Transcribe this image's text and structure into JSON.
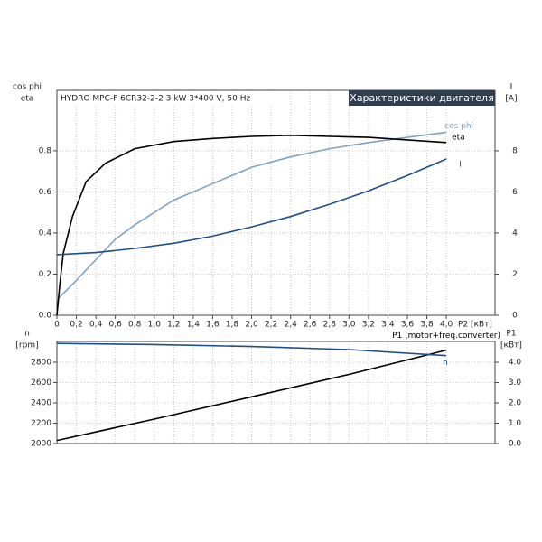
{
  "chart_data": [
    {
      "type": "line",
      "title": "HYDRO MPC-F 6CR32-2-2  3 kW  3*400 V, 50 Hz",
      "panel_label": "Характеристики двигателя",
      "y_label": [
        "cos phi",
        "eta"
      ],
      "y2_label": [
        "I",
        "[A]"
      ],
      "x_label": "P2 [кВт]",
      "xlim": [
        0,
        4.5
      ],
      "xticks": [
        0,
        {
          "value": 0.2,
          "label": "0,2"
        },
        {
          "value": 0.4,
          "label": "0,4"
        },
        {
          "value": 0.6,
          "label": "0,6"
        },
        {
          "value": 0.8,
          "label": "0,8"
        },
        {
          "value": 1.0,
          "label": "1,0"
        },
        {
          "value": 1.2,
          "label": "1,2"
        },
        {
          "value": 1.4,
          "label": "1,4"
        },
        {
          "value": 1.6,
          "label": "1,6"
        },
        {
          "value": 1.8,
          "label": "1,8"
        },
        {
          "value": 2.0,
          "label": "2,0"
        },
        {
          "value": 2.2,
          "label": "2,2"
        },
        {
          "value": 2.4,
          "label": "2,4"
        },
        {
          "value": 2.6,
          "label": "2,6"
        },
        {
          "value": 2.8,
          "label": "2,8"
        },
        {
          "value": 3.0,
          "label": "3,0"
        },
        {
          "value": 3.2,
          "label": "3,2"
        },
        {
          "value": 3.4,
          "label": "3,4"
        },
        {
          "value": 3.6,
          "label": "3,6"
        },
        {
          "value": 3.8,
          "label": "3,8"
        },
        {
          "value": 4.0,
          "label": "4,0"
        }
      ],
      "ylim": [
        0,
        1.094
      ],
      "yticks": [
        {
          "value": 0,
          "label": "0.0"
        },
        0.2,
        0.4,
        0.6,
        0.8
      ],
      "y2lim": [
        0,
        10.94
      ],
      "y2ticks": [
        0,
        2,
        4,
        6,
        8
      ],
      "grid": true,
      "series": [
        {
          "name": "cos phi",
          "color": "#7ea3c4",
          "x": [
            0,
            0.2,
            0.4,
            0.6,
            0.8,
            1.0,
            1.2,
            1.6,
            2.0,
            2.4,
            2.8,
            3.2,
            3.6,
            4.0
          ],
          "values": [
            0.075,
            0.17,
            0.27,
            0.37,
            0.44,
            0.5,
            0.56,
            0.64,
            0.72,
            0.77,
            0.81,
            0.84,
            0.865,
            0.89
          ]
        },
        {
          "name": "eta",
          "color": "#000000",
          "x": [
            0,
            0.03,
            0.065,
            0.16,
            0.3,
            0.5,
            0.8,
            1.2,
            1.6,
            2.0,
            2.4,
            2.8,
            3.2,
            3.6,
            4.0
          ],
          "values": [
            0,
            0.15,
            0.3,
            0.48,
            0.65,
            0.74,
            0.81,
            0.845,
            0.86,
            0.87,
            0.875,
            0.87,
            0.865,
            0.853,
            0.84
          ]
        },
        {
          "name": "I",
          "color": "#1f4e8c",
          "axis": "y2",
          "x": [
            0,
            0.4,
            0.8,
            1.2,
            1.6,
            2.0,
            2.4,
            2.8,
            3.2,
            3.6,
            4.0
          ],
          "values": [
            2.95,
            3.05,
            3.25,
            3.5,
            3.85,
            4.3,
            4.8,
            5.4,
            6.05,
            6.8,
            7.6
          ]
        }
      ]
    },
    {
      "type": "line",
      "y_label": [
        "n",
        "[rpm]"
      ],
      "y2_label": [
        "P1",
        "[кВт]"
      ],
      "xlim": [
        0,
        4.5
      ],
      "ylim": [
        2000,
        3005
      ],
      "yticks": [
        2000,
        2200,
        2400,
        2600,
        2800
      ],
      "y2lim": [
        0,
        5.025
      ],
      "y2ticks": [
        {
          "value": 0,
          "label": "0.0"
        },
        {
          "value": 1,
          "label": "1.0"
        },
        {
          "value": 2,
          "label": "2.0"
        },
        {
          "value": 3,
          "label": "3.0"
        },
        {
          "value": 4,
          "label": "4.0"
        }
      ],
      "grid": true,
      "series": [
        {
          "name": "P1 (motor+freq.converter)",
          "color": "#000000",
          "axis": "y2",
          "x": [
            0,
            1.0,
            2.0,
            3.0,
            4.0
          ],
          "values": [
            0.15,
            1.2,
            2.3,
            3.4,
            4.6
          ]
        },
        {
          "name": "n",
          "color": "#1f4e8c",
          "x": [
            0,
            1.0,
            2.0,
            3.0,
            4.0
          ],
          "values": [
            2985,
            2975,
            2955,
            2925,
            2865
          ]
        }
      ]
    }
  ]
}
